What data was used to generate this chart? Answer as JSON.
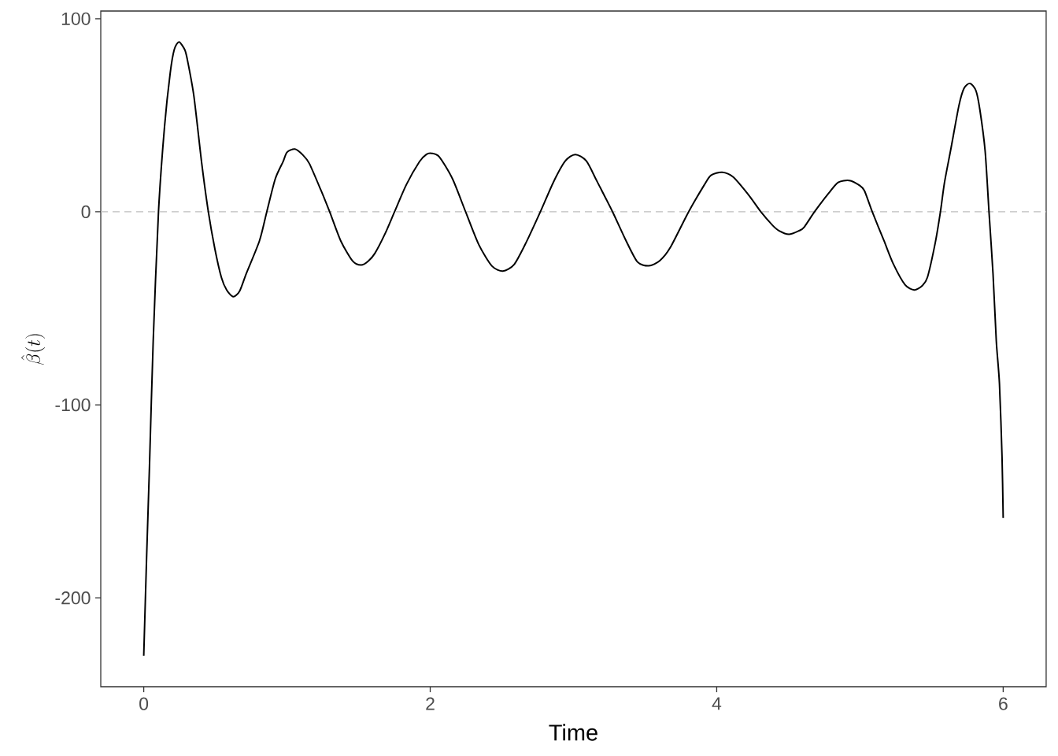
{
  "chart_data": {
    "type": "line",
    "xlabel": "Time",
    "ylabel": "\\hat{\\beta}(t)",
    "xlim": [
      -0.3,
      6.3
    ],
    "ylim": [
      -246,
      104
    ],
    "xticks": [
      0,
      2,
      4,
      6
    ],
    "yticks": [
      -200,
      -100,
      0,
      100
    ],
    "ref_lines": [
      {
        "axis": "y",
        "value": 0,
        "color": "#bebebe",
        "line_style": "dashed"
      }
    ],
    "x": [
      0,
      0.02,
      0.04,
      0.066,
      0.103,
      0.145,
      0.185,
      0.213,
      0.246,
      0.286,
      0.304,
      0.35,
      0.405,
      0.451,
      0.496,
      0.542,
      0.579,
      0.625,
      0.67,
      0.716,
      0.808,
      0.859,
      0.918,
      0.973,
      1.0,
      1.055,
      1.11,
      1.156,
      1.238,
      1.298,
      1.375,
      1.458,
      1.518,
      1.568,
      1.614,
      1.687,
      1.751,
      1.833,
      1.925,
      1.973,
      2.008,
      2.064,
      2.156,
      2.247,
      2.339,
      2.43,
      2.507,
      2.586,
      2.669,
      2.769,
      2.861,
      2.943,
      3.013,
      3.09,
      3.163,
      3.273,
      3.364,
      3.447,
      3.526,
      3.603,
      3.676,
      3.804,
      3.914,
      3.96,
      4.038,
      4.115,
      4.225,
      4.308,
      4.39,
      4.436,
      4.504,
      4.573,
      4.61,
      4.683,
      4.775,
      4.848,
      4.925,
      4.995,
      5.031,
      5.086,
      5.168,
      5.233,
      5.315,
      5.379,
      5.434,
      5.471,
      5.526,
      5.562,
      5.59,
      5.636,
      5.691,
      5.727,
      5.769,
      5.81,
      5.837,
      5.874,
      5.901,
      5.929,
      5.952,
      5.974,
      5.992,
      6.0
    ],
    "series": [
      {
        "color": "#000000",
        "values": [
          -230,
          -179,
          -132,
          -67,
          0,
          44,
          72,
          84,
          88,
          84,
          79,
          60,
          25,
          0,
          -19,
          -34,
          -40.5,
          -44,
          -41,
          -32,
          -15,
          0,
          17,
          26,
          30.8,
          32.5,
          29.5,
          25,
          11,
          0,
          -15,
          -25.5,
          -27.6,
          -25.5,
          -21.5,
          -11,
          0,
          14,
          26,
          29.7,
          30.3,
          28.4,
          17,
          0,
          -17,
          -28,
          -30.7,
          -27.3,
          -16,
          0,
          15.5,
          26.3,
          29.7,
          26.3,
          16,
          0,
          -14.5,
          -26,
          -28,
          -25.3,
          -18.5,
          0,
          14,
          18.9,
          20.5,
          18,
          8.5,
          0,
          -7,
          -9.9,
          -11.7,
          -9.9,
          -8,
          0,
          9,
          15.2,
          16.2,
          13.8,
          11,
          0,
          -15,
          -27,
          -37.8,
          -40.5,
          -38.4,
          -34,
          -16,
          0,
          15,
          33,
          55,
          64,
          66.5,
          62.7,
          53,
          31.5,
          0,
          -32,
          -67,
          -89,
          -127,
          -158.6
        ]
      }
    ]
  }
}
